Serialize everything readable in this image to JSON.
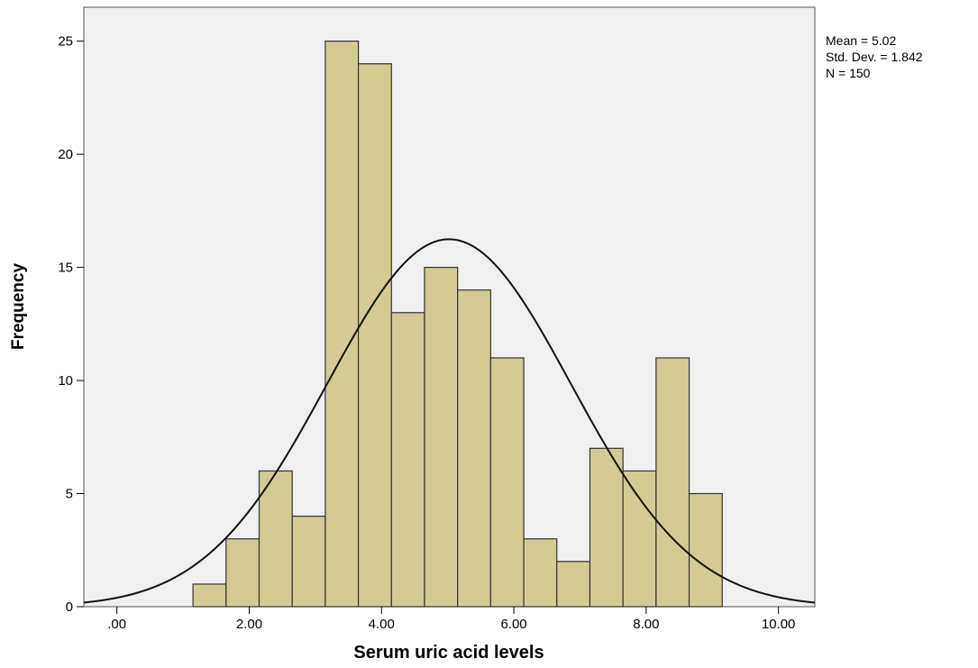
{
  "chart_data": {
    "type": "bar",
    "title": "",
    "xlabel": "Serum uric acid levels",
    "ylabel": "Frequency",
    "xlim": [
      -0.5,
      10.55
    ],
    "ylim": [
      0,
      26.5
    ],
    "x_ticks": [
      0,
      2,
      4,
      6,
      8,
      10
    ],
    "x_tick_labels": [
      ".00",
      "2.00",
      "4.00",
      "6.00",
      "8.00",
      "10.00"
    ],
    "y_ticks": [
      0,
      5,
      10,
      15,
      20,
      25
    ],
    "y_tick_labels": [
      "0",
      "5",
      "10",
      "15",
      "20",
      "25"
    ],
    "grid": false,
    "bin_width": 0.5,
    "bins": [
      {
        "start": 1.15,
        "end": 1.65,
        "count": 1
      },
      {
        "start": 1.65,
        "end": 2.15,
        "count": 3
      },
      {
        "start": 2.15,
        "end": 2.65,
        "count": 6
      },
      {
        "start": 2.65,
        "end": 3.15,
        "count": 4
      },
      {
        "start": 3.15,
        "end": 3.65,
        "count": 25
      },
      {
        "start": 3.65,
        "end": 4.15,
        "count": 24
      },
      {
        "start": 4.15,
        "end": 4.65,
        "count": 13
      },
      {
        "start": 4.65,
        "end": 5.15,
        "count": 15
      },
      {
        "start": 5.15,
        "end": 5.65,
        "count": 14
      },
      {
        "start": 5.65,
        "end": 6.15,
        "count": 11
      },
      {
        "start": 6.15,
        "end": 6.65,
        "count": 3
      },
      {
        "start": 6.65,
        "end": 7.15,
        "count": 2
      },
      {
        "start": 7.15,
        "end": 7.65,
        "count": 7
      },
      {
        "start": 7.65,
        "end": 8.15,
        "count": 6
      },
      {
        "start": 8.15,
        "end": 8.65,
        "count": 11
      },
      {
        "start": 8.65,
        "end": 9.15,
        "count": 5
      }
    ],
    "normal_curve": {
      "mean": 5.02,
      "std_dev": 1.842,
      "n": 150
    },
    "stats": {
      "mean_text": "Mean = 5.02",
      "std_text": "Std. Dev. = 1.842",
      "n_text": "N = 150"
    },
    "colors": {
      "plot_bg": "#f0f0f0",
      "bar_fill": "#d4cb94",
      "bar_stroke": "#333333",
      "curve": "#111111"
    }
  }
}
